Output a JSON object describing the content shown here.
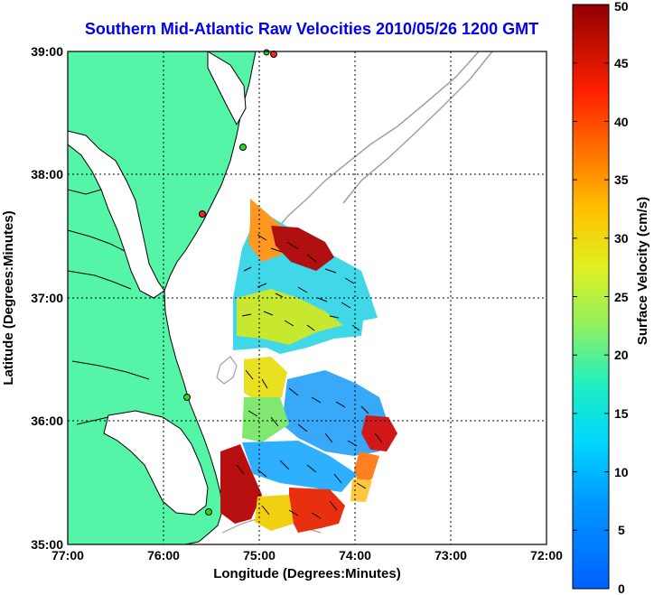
{
  "title": "Southern Mid-Atlantic Raw Velocities 2010/05/26 1200 GMT",
  "x_axis": {
    "label": "Longitude (Degrees:Minutes)",
    "ticks": [
      "77:00",
      "76:00",
      "75:00",
      "74:00",
      "73:00",
      "72:00"
    ]
  },
  "y_axis": {
    "label": "Latitude (Degrees:Minutes)",
    "ticks": [
      "39:00",
      "38:00",
      "37:00",
      "36:00",
      "35:00"
    ]
  },
  "colorbar": {
    "label": "Surface Velocity (cm/s)",
    "ticks": [
      "0",
      "5",
      "10",
      "15",
      "20",
      "25",
      "30",
      "35",
      "40",
      "45",
      "50"
    ],
    "colormap": "jet",
    "min": 0,
    "max": 50
  },
  "colors": {
    "land": "#55f5a8",
    "coastline": "#000000",
    "bathymetry": "#a0a0a0",
    "station_green": "#22dd22",
    "station_red": "#ff2222",
    "title": "#0000ee"
  },
  "stations": [
    {
      "lon": -75.17,
      "lat": 39.0,
      "color": "red"
    },
    {
      "lon": -75.1,
      "lat": 38.99,
      "color": "green"
    },
    {
      "lon": -75.52,
      "lat": 38.22,
      "color": "green"
    },
    {
      "lon": -75.83,
      "lat": 37.69,
      "color": "red"
    },
    {
      "lon": -75.75,
      "lat": 36.15,
      "color": "green"
    },
    {
      "lon": -75.52,
      "lat": 35.25,
      "color": "green"
    }
  ]
}
